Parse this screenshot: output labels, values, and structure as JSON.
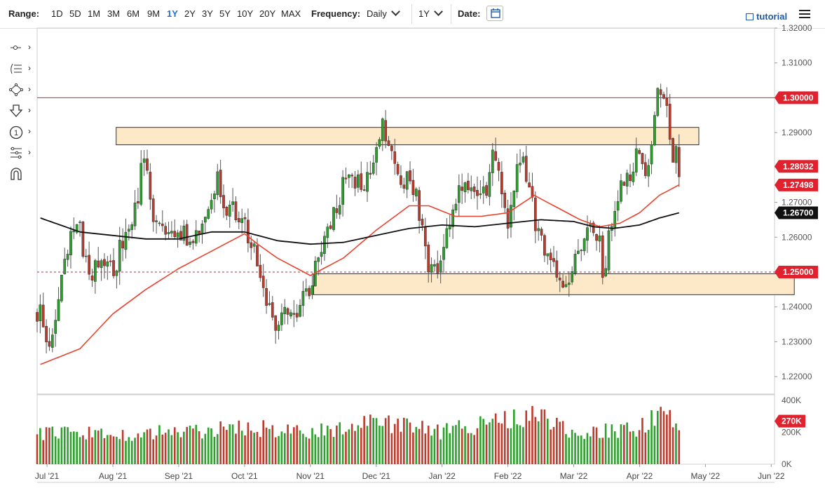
{
  "toolbar": {
    "range_label": "Range:",
    "ranges": [
      "1D",
      "5D",
      "1M",
      "3M",
      "6M",
      "9M",
      "1Y",
      "2Y",
      "3Y",
      "5Y",
      "10Y",
      "20Y",
      "MAX"
    ],
    "active_range": "1Y",
    "frequency_label": "Frequency:",
    "frequency_value": "Daily",
    "period_value": "1Y",
    "date_label": "Date:",
    "tutorial_label": "tutorial",
    "icons": [
      "calendar-icon",
      "film-icon",
      "hamburger-icon"
    ]
  },
  "sidebar": {
    "tools": [
      "line-tool-icon",
      "fib-tool-icon",
      "shape-tool-icon",
      "arrow-tool-icon",
      "counter-tool-icon",
      "pitchfork-tool-icon",
      "magnet-icon"
    ]
  },
  "colors": {
    "up": "#2ca02c",
    "down": "#c0392b",
    "ma50": "#e8432f",
    "ma200": "#111111",
    "resistance_line": "#d22331",
    "zone_fill": "#fde8c8",
    "badge_red": "#e0222f",
    "badge_black": "#111111"
  },
  "chart_data": {
    "type": "candlestick",
    "ylim": [
      1.215,
      1.32
    ],
    "y_ticks": [
      "1.32000",
      "1.31000",
      "1.30000",
      "1.29000",
      "1.28000",
      "1.27000",
      "1.26000",
      "1.25000",
      "1.24000",
      "1.23000",
      "1.22000"
    ],
    "x_ticks": [
      "Jul '21",
      "Aug '21",
      "Sep '21",
      "Oct '21",
      "Nov '21",
      "Dec '21",
      "Jan '22",
      "Feb '22",
      "Mar '22",
      "Apr '22",
      "May '22",
      "Jun '22"
    ],
    "price_badges": [
      {
        "label": "1.30000",
        "value": 1.3,
        "color": "#e0222f"
      },
      {
        "label": "1.28032",
        "value": 1.28032,
        "color": "#e0222f"
      },
      {
        "label": "1.27498",
        "value": 1.27498,
        "color": "#e0222f"
      },
      {
        "label": "1.26700",
        "value": 1.267,
        "color": "#111111"
      },
      {
        "label": "1.25000",
        "value": 1.25,
        "color": "#e0222f"
      }
    ],
    "horizontal_lines": [
      {
        "value": 1.3,
        "style": "solid"
      },
      {
        "value": 1.25,
        "style": "dashed"
      }
    ],
    "zones": [
      {
        "name": "upper-resistance-zone",
        "from_x": "Aug '21",
        "to_x": "May '22",
        "y": [
          1.2865,
          1.2915
        ]
      },
      {
        "name": "lower-support-zone",
        "from_x": "Nov '21",
        "to_x": "Jun '22",
        "y": [
          1.2435,
          1.2495
        ]
      }
    ],
    "close_series": [
      {
        "m": -0.1,
        "v": 1.238
      },
      {
        "m": 0.0,
        "v": 1.228
      },
      {
        "m": 0.1,
        "v": 1.236
      },
      {
        "m": 0.2,
        "v": 1.246
      },
      {
        "m": 0.3,
        "v": 1.254
      },
      {
        "m": 0.4,
        "v": 1.262
      },
      {
        "m": 0.5,
        "v": 1.262
      },
      {
        "m": 0.6,
        "v": 1.252
      },
      {
        "m": 0.7,
        "v": 1.248
      },
      {
        "m": 0.8,
        "v": 1.256
      },
      {
        "m": 0.9,
        "v": 1.254
      },
      {
        "m": 1.0,
        "v": 1.248
      },
      {
        "m": 1.1,
        "v": 1.256
      },
      {
        "m": 1.2,
        "v": 1.262
      },
      {
        "m": 1.3,
        "v": 1.264
      },
      {
        "m": 1.4,
        "v": 1.274
      },
      {
        "m": 1.45,
        "v": 1.282
      },
      {
        "m": 1.55,
        "v": 1.274
      },
      {
        "m": 1.65,
        "v": 1.262
      },
      {
        "m": 1.8,
        "v": 1.26
      },
      {
        "m": 2.0,
        "v": 1.262
      },
      {
        "m": 2.1,
        "v": 1.26
      },
      {
        "m": 2.2,
        "v": 1.256
      },
      {
        "m": 2.3,
        "v": 1.262
      },
      {
        "m": 2.4,
        "v": 1.266
      },
      {
        "m": 2.5,
        "v": 1.272
      },
      {
        "m": 2.6,
        "v": 1.278
      },
      {
        "m": 2.7,
        "v": 1.268
      },
      {
        "m": 2.8,
        "v": 1.272
      },
      {
        "m": 2.9,
        "v": 1.264
      },
      {
        "m": 3.0,
        "v": 1.264
      },
      {
        "m": 3.1,
        "v": 1.258
      },
      {
        "m": 3.2,
        "v": 1.252
      },
      {
        "m": 3.3,
        "v": 1.243
      },
      {
        "m": 3.4,
        "v": 1.238
      },
      {
        "m": 3.5,
        "v": 1.234
      },
      {
        "m": 3.6,
        "v": 1.238
      },
      {
        "m": 3.7,
        "v": 1.236
      },
      {
        "m": 3.8,
        "v": 1.24
      },
      {
        "m": 3.9,
        "v": 1.244
      },
      {
        "m": 4.0,
        "v": 1.246
      },
      {
        "m": 4.1,
        "v": 1.252
      },
      {
        "m": 4.2,
        "v": 1.258
      },
      {
        "m": 4.3,
        "v": 1.264
      },
      {
        "m": 4.4,
        "v": 1.268
      },
      {
        "m": 4.5,
        "v": 1.276
      },
      {
        "m": 4.6,
        "v": 1.28
      },
      {
        "m": 4.7,
        "v": 1.276
      },
      {
        "m": 4.8,
        "v": 1.272
      },
      {
        "m": 4.9,
        "v": 1.28
      },
      {
        "m": 5.0,
        "v": 1.286
      },
      {
        "m": 5.1,
        "v": 1.292
      },
      {
        "m": 5.2,
        "v": 1.284
      },
      {
        "m": 5.3,
        "v": 1.28
      },
      {
        "m": 5.4,
        "v": 1.276
      },
      {
        "m": 5.5,
        "v": 1.278
      },
      {
        "m": 5.6,
        "v": 1.272
      },
      {
        "m": 5.7,
        "v": 1.262
      },
      {
        "m": 5.8,
        "v": 1.252
      },
      {
        "m": 5.9,
        "v": 1.25
      },
      {
        "m": 6.0,
        "v": 1.256
      },
      {
        "m": 6.1,
        "v": 1.264
      },
      {
        "m": 6.2,
        "v": 1.27
      },
      {
        "m": 6.3,
        "v": 1.274
      },
      {
        "m": 6.4,
        "v": 1.272
      },
      {
        "m": 6.5,
        "v": 1.274
      },
      {
        "m": 6.6,
        "v": 1.27
      },
      {
        "m": 6.7,
        "v": 1.276
      },
      {
        "m": 6.8,
        "v": 1.286
      },
      {
        "m": 6.9,
        "v": 1.27
      },
      {
        "m": 7.0,
        "v": 1.264
      },
      {
        "m": 7.1,
        "v": 1.274
      },
      {
        "m": 7.2,
        "v": 1.284
      },
      {
        "m": 7.3,
        "v": 1.276
      },
      {
        "m": 7.4,
        "v": 1.266
      },
      {
        "m": 7.5,
        "v": 1.258
      },
      {
        "m": 7.6,
        "v": 1.254
      },
      {
        "m": 7.7,
        "v": 1.25
      },
      {
        "m": 7.8,
        "v": 1.247
      },
      {
        "m": 7.9,
        "v": 1.249
      },
      {
        "m": 8.0,
        "v": 1.252
      },
      {
        "m": 8.1,
        "v": 1.256
      },
      {
        "m": 8.2,
        "v": 1.262
      },
      {
        "m": 8.3,
        "v": 1.262
      },
      {
        "m": 8.4,
        "v": 1.258
      },
      {
        "m": 8.45,
        "v": 1.249
      },
      {
        "m": 8.55,
        "v": 1.262
      },
      {
        "m": 8.65,
        "v": 1.272
      },
      {
        "m": 8.75,
        "v": 1.276
      },
      {
        "m": 8.85,
        "v": 1.276
      },
      {
        "m": 8.95,
        "v": 1.284
      },
      {
        "m": 9.0,
        "v": 1.282
      },
      {
        "m": 9.1,
        "v": 1.28
      },
      {
        "m": 9.2,
        "v": 1.286
      },
      {
        "m": 9.25,
        "v": 1.3
      },
      {
        "m": 9.3,
        "v": 1.302
      },
      {
        "m": 9.35,
        "v": 1.304
      },
      {
        "m": 9.4,
        "v": 1.3
      },
      {
        "m": 9.45,
        "v": 1.29
      },
      {
        "m": 9.5,
        "v": 1.282
      },
      {
        "m": 9.55,
        "v": 1.288
      },
      {
        "m": 9.6,
        "v": 1.28
      }
    ],
    "ma50_series": [
      {
        "m": -0.1,
        "v": 1.2235
      },
      {
        "m": 0.5,
        "v": 1.228
      },
      {
        "m": 1.0,
        "v": 1.238
      },
      {
        "m": 1.5,
        "v": 1.245
      },
      {
        "m": 2.0,
        "v": 1.251
      },
      {
        "m": 2.5,
        "v": 1.256
      },
      {
        "m": 3.0,
        "v": 1.261
      },
      {
        "m": 3.2,
        "v": 1.258
      },
      {
        "m": 3.5,
        "v": 1.254
      },
      {
        "m": 4.0,
        "v": 1.249
      },
      {
        "m": 4.5,
        "v": 1.254
      },
      {
        "m": 5.0,
        "v": 1.262
      },
      {
        "m": 5.5,
        "v": 1.269
      },
      {
        "m": 5.8,
        "v": 1.269
      },
      {
        "m": 6.2,
        "v": 1.266
      },
      {
        "m": 6.6,
        "v": 1.266
      },
      {
        "m": 7.0,
        "v": 1.267
      },
      {
        "m": 7.4,
        "v": 1.272
      },
      {
        "m": 7.8,
        "v": 1.268
      },
      {
        "m": 8.1,
        "v": 1.265
      },
      {
        "m": 8.4,
        "v": 1.263
      },
      {
        "m": 8.7,
        "v": 1.264
      },
      {
        "m": 9.0,
        "v": 1.267
      },
      {
        "m": 9.3,
        "v": 1.272
      },
      {
        "m": 9.6,
        "v": 1.275
      }
    ],
    "ma200_series": [
      {
        "m": -0.1,
        "v": 1.2655
      },
      {
        "m": 0.5,
        "v": 1.2615
      },
      {
        "m": 1.0,
        "v": 1.2605
      },
      {
        "m": 1.5,
        "v": 1.2595
      },
      {
        "m": 2.0,
        "v": 1.2595
      },
      {
        "m": 2.5,
        "v": 1.2615
      },
      {
        "m": 3.0,
        "v": 1.2615
      },
      {
        "m": 3.5,
        "v": 1.259
      },
      {
        "m": 4.0,
        "v": 1.258
      },
      {
        "m": 4.5,
        "v": 1.2585
      },
      {
        "m": 5.0,
        "v": 1.2605
      },
      {
        "m": 5.5,
        "v": 1.2625
      },
      {
        "m": 6.0,
        "v": 1.2635
      },
      {
        "m": 6.5,
        "v": 1.263
      },
      {
        "m": 7.0,
        "v": 1.264
      },
      {
        "m": 7.5,
        "v": 1.265
      },
      {
        "m": 8.0,
        "v": 1.2645
      },
      {
        "m": 8.3,
        "v": 1.263
      },
      {
        "m": 8.6,
        "v": 1.2625
      },
      {
        "m": 9.0,
        "v": 1.2635
      },
      {
        "m": 9.3,
        "v": 1.2655
      },
      {
        "m": 9.6,
        "v": 1.267
      }
    ],
    "volume": {
      "ylim": [
        0,
        400000
      ],
      "y_ticks": [
        "400K",
        "200K",
        "0K"
      ],
      "badge": "270K",
      "levels": [
        {
          "m": -0.1,
          "v": 190000
        },
        {
          "m": 1.0,
          "v": 190000
        },
        {
          "m": 2.0,
          "v": 200000
        },
        {
          "m": 3.0,
          "v": 230000
        },
        {
          "m": 4.0,
          "v": 200000
        },
        {
          "m": 5.0,
          "v": 260000
        },
        {
          "m": 6.0,
          "v": 200000
        },
        {
          "m": 6.9,
          "v": 280000
        },
        {
          "m": 7.5,
          "v": 310000
        },
        {
          "m": 8.0,
          "v": 200000
        },
        {
          "m": 8.5,
          "v": 210000
        },
        {
          "m": 9.0,
          "v": 230000
        },
        {
          "m": 9.3,
          "v": 300000
        },
        {
          "m": 9.6,
          "v": 270000
        }
      ]
    }
  }
}
